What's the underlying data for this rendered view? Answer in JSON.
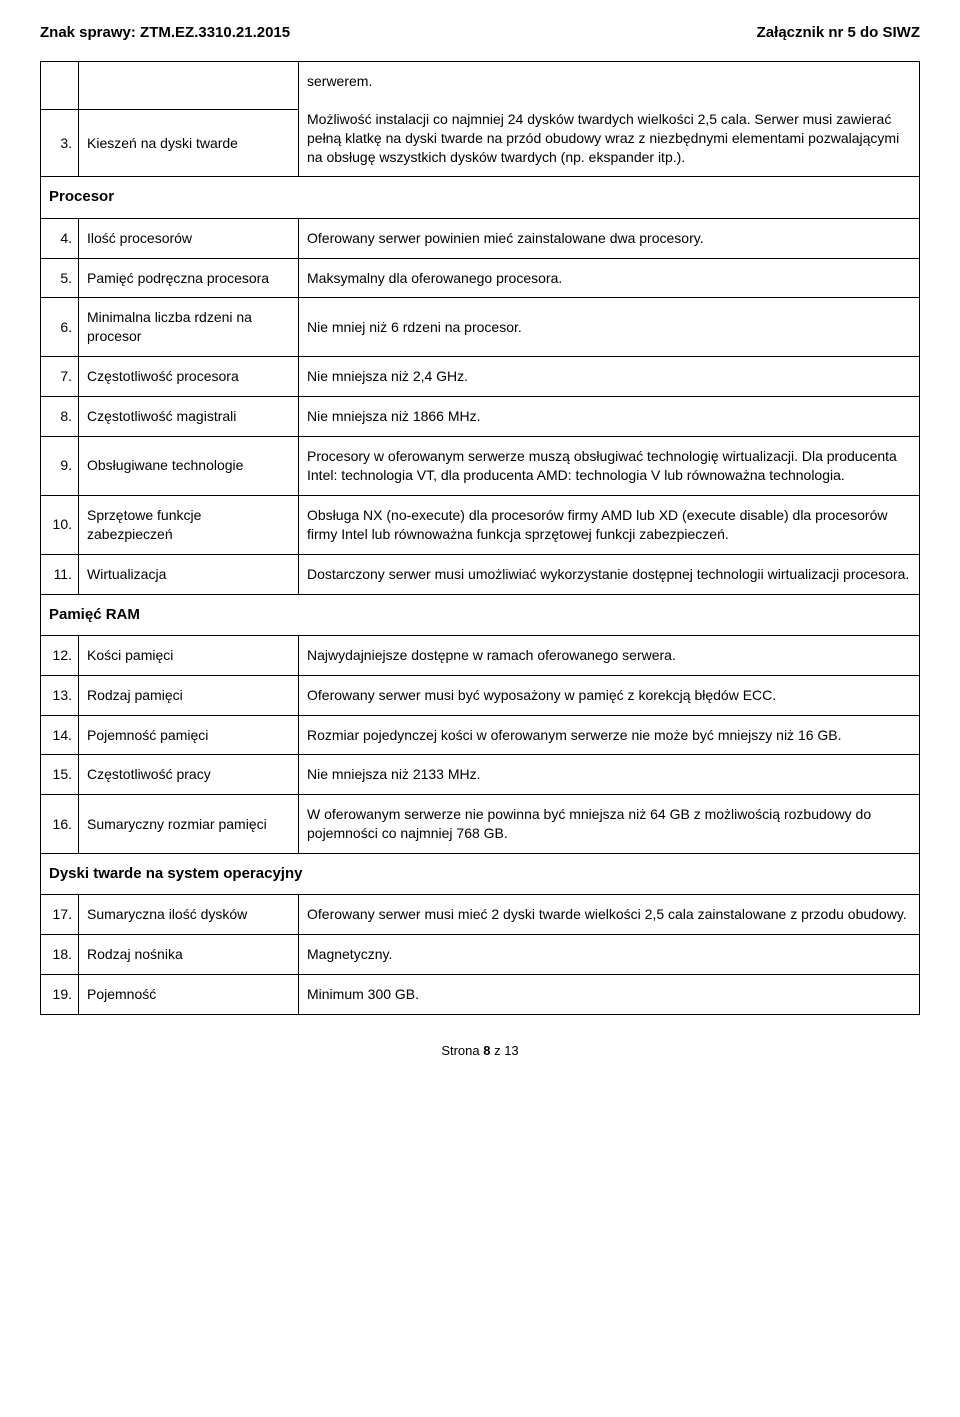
{
  "header": {
    "left": "Znak sprawy: ZTM.EZ.3310.21.2015",
    "right": "Załącznik nr 5 do SIWZ"
  },
  "rows": [
    {
      "type": "empty2"
    },
    {
      "type": "row",
      "num": "3.",
      "label": "Kieszeń na dyski twarde",
      "value": "serwerem.\n\nMożliwość instalacji co najmniej 24 dysków twardych wielkości 2,5 cala. Serwer musi zawierać pełną klatkę na dyski twarde na przód obudowy wraz z niezbędnymi elementami pozwalającymi na obsługę wszystkich dysków twardych (np. ekspander itp.)."
    },
    {
      "type": "section",
      "title": "Procesor"
    },
    {
      "type": "row",
      "num": "4.",
      "label": "Ilość procesorów",
      "value": "Oferowany serwer powinien mieć zainstalowane dwa procesory."
    },
    {
      "type": "row",
      "num": "5.",
      "label": "Pamięć podręczna procesora",
      "value": "Maksymalny dla oferowanego procesora."
    },
    {
      "type": "row",
      "num": "6.",
      "label": "Minimalna liczba rdzeni na procesor",
      "value": "Nie mniej niż 6 rdzeni na procesor."
    },
    {
      "type": "row",
      "num": "7.",
      "label": "Częstotliwość procesora",
      "value": "Nie mniejsza niż 2,4 GHz."
    },
    {
      "type": "row",
      "num": "8.",
      "label": "Częstotliwość magistrali",
      "value": "Nie mniejsza niż 1866 MHz."
    },
    {
      "type": "row",
      "num": "9.",
      "label": "Obsługiwane technologie",
      "value": "Procesory w oferowanym serwerze muszą obsługiwać technologię wirtualizacji. Dla producenta Intel: technologia VT, dla producenta AMD: technologia V lub równoważna technologia."
    },
    {
      "type": "row",
      "num": "10.",
      "label": "Sprzętowe funkcje zabezpieczeń",
      "value": "Obsługa NX (no-execute) dla procesorów firmy AMD lub XD (execute disable) dla procesorów firmy Intel lub równoważna funkcja sprzętowej funkcji zabezpieczeń."
    },
    {
      "type": "row",
      "num": "11.",
      "label": "Wirtualizacja",
      "value": "Dostarczony serwer musi umożliwiać wykorzystanie dostępnej technologii wirtualizacji procesora."
    },
    {
      "type": "section",
      "title": "Pamięć RAM"
    },
    {
      "type": "row",
      "num": "12.",
      "label": "Kości pamięci",
      "value": "Najwydajniejsze dostępne w ramach oferowanego serwera."
    },
    {
      "type": "row",
      "num": "13.",
      "label": "Rodzaj pamięci",
      "value": "Oferowany serwer musi być wyposażony w pamięć z korekcją błędów ECC."
    },
    {
      "type": "row",
      "num": "14.",
      "label": "Pojemność pamięci",
      "value": "Rozmiar pojedynczej kości w oferowanym serwerze nie może być mniejszy niż 16 GB."
    },
    {
      "type": "row",
      "num": "15.",
      "label": "Częstotliwość pracy",
      "value": "Nie mniejsza niż 2133 MHz."
    },
    {
      "type": "row",
      "num": "16.",
      "label": "Sumaryczny rozmiar pamięci",
      "value": "W oferowanym serwerze nie powinna być mniejsza niż 64 GB z możliwością rozbudowy do pojemności co najmniej 768 GB."
    },
    {
      "type": "section",
      "title": "Dyski twarde na system operacyjny"
    },
    {
      "type": "row",
      "num": "17.",
      "label": "Sumaryczna ilość dysków",
      "value": "Oferowany serwer musi mieć 2 dyski twarde wielkości 2,5 cala zainstalowane z przodu obudowy."
    },
    {
      "type": "row",
      "num": "18.",
      "label": "Rodzaj nośnika",
      "value": "Magnetyczny."
    },
    {
      "type": "row",
      "num": "19.",
      "label": "Pojemność",
      "value": "Minimum 300 GB."
    }
  ],
  "footer": {
    "prefix": "Strona ",
    "page": "8",
    "mid": " z ",
    "total": "13"
  }
}
